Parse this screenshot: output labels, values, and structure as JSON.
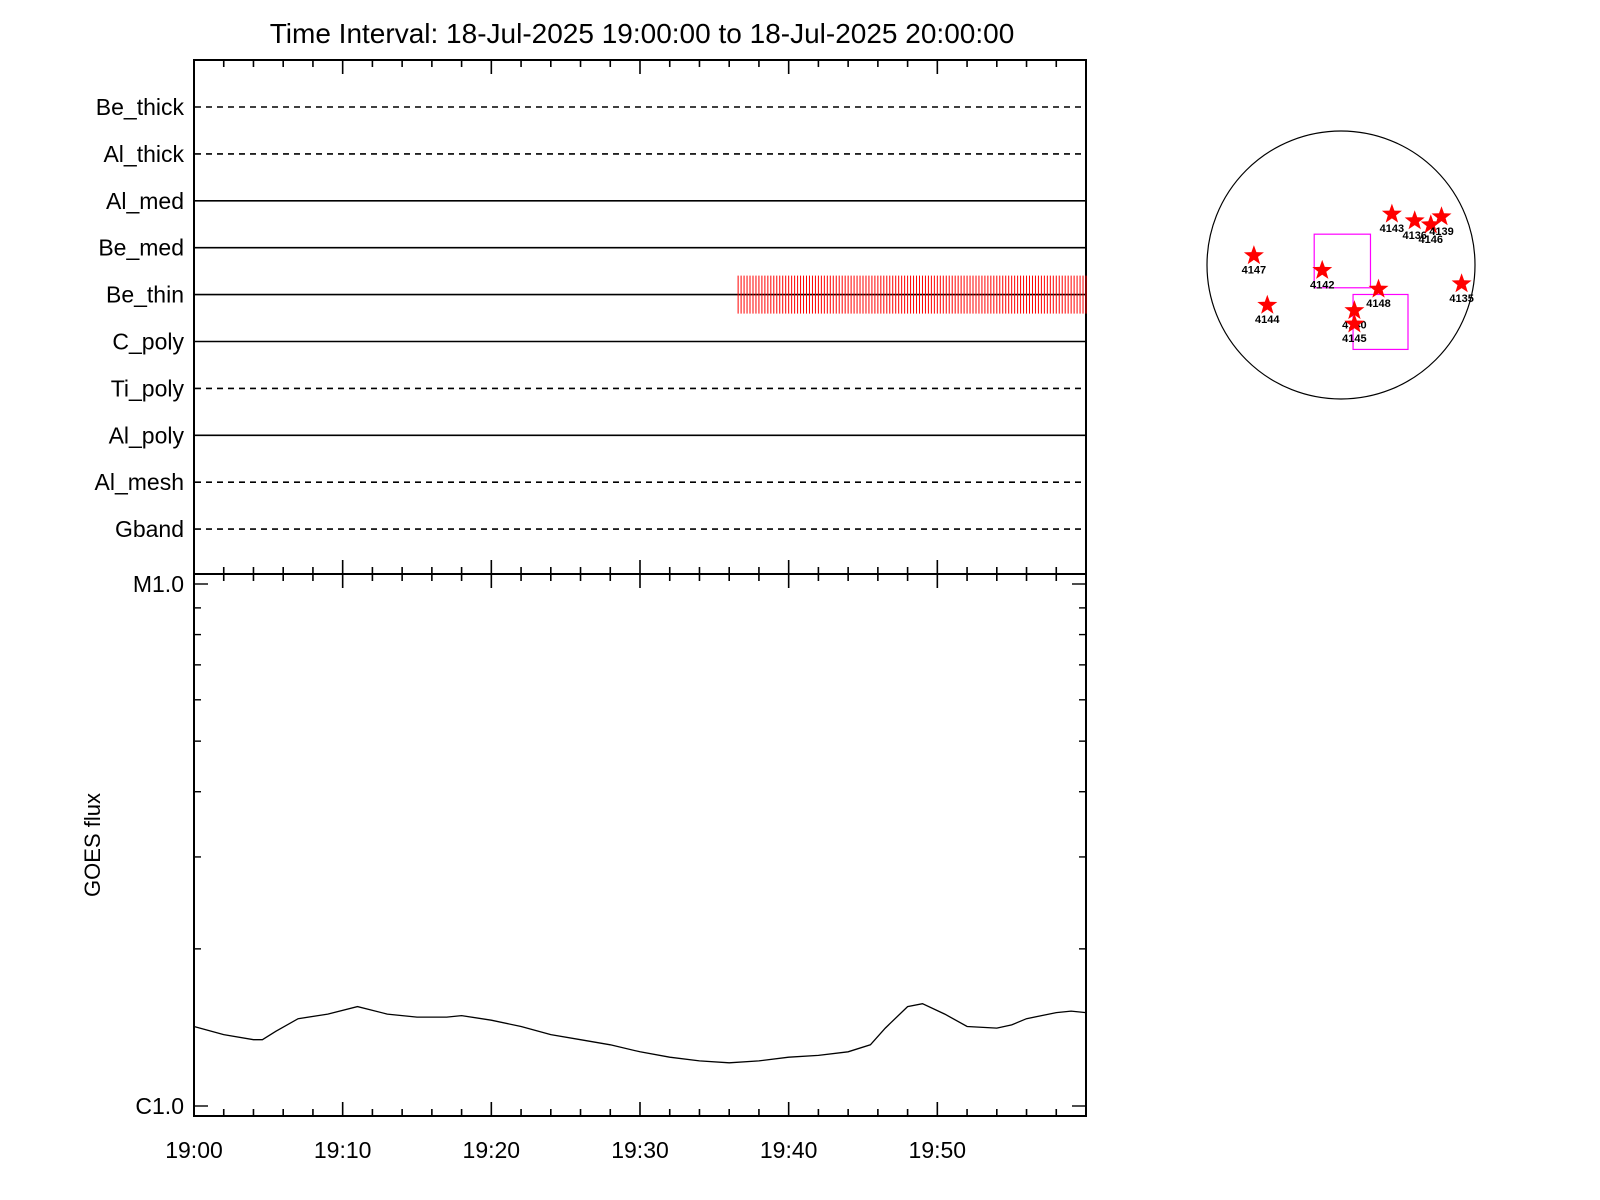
{
  "title": "Time Interval: 18-Jul-2025 19:00:00 to 18-Jul-2025 20:00:00",
  "colors": {
    "obs_marks": "#ff0000",
    "ar_star": "#ff0000",
    "fov_box": "#ff00ff",
    "axis": "#000000"
  },
  "chart_data": [
    {
      "type": "timeline",
      "x_unit": "minutes after 19:00",
      "xlim": [
        0,
        60
      ],
      "rows": [
        {
          "label": "Be_thick",
          "style": "dashed"
        },
        {
          "label": "Al_thick",
          "style": "dashed"
        },
        {
          "label": "Al_med",
          "style": "solid"
        },
        {
          "label": "Be_med",
          "style": "solid"
        },
        {
          "label": "Be_thin",
          "style": "solid",
          "observations": [
            [
              36.6,
              60
            ]
          ]
        },
        {
          "label": "C_poly",
          "style": "solid"
        },
        {
          "label": "Ti_poly",
          "style": "dashed"
        },
        {
          "label": "Al_poly",
          "style": "solid"
        },
        {
          "label": "Al_mesh",
          "style": "dashed"
        },
        {
          "label": "Gband",
          "style": "dashed"
        }
      ]
    },
    {
      "type": "line",
      "ylabel": "GOES flux",
      "y_scale": "log",
      "yticks": [
        "M1.0",
        "C1.0"
      ],
      "ylim": [
        1e-06,
        1e-05
      ],
      "xticks": [
        "19:00",
        "19:10",
        "19:20",
        "19:30",
        "19:40",
        "19:50"
      ],
      "x_minutes": [
        0,
        2,
        4,
        4.6,
        5.5,
        7,
        9,
        11,
        13,
        15,
        17,
        18,
        20,
        22,
        24,
        26,
        28,
        30,
        32,
        34,
        36,
        38,
        40,
        42,
        44,
        45.5,
        46.5,
        48,
        49,
        50.5,
        52,
        54,
        55,
        56,
        58,
        59,
        60
      ],
      "y_flux": [
        1.42e-06,
        1.37e-06,
        1.34e-06,
        1.34e-06,
        1.39e-06,
        1.47e-06,
        1.5e-06,
        1.55e-06,
        1.5e-06,
        1.48e-06,
        1.48e-06,
        1.49e-06,
        1.46e-06,
        1.42e-06,
        1.37e-06,
        1.34e-06,
        1.31e-06,
        1.27e-06,
        1.24e-06,
        1.22e-06,
        1.21e-06,
        1.22e-06,
        1.24e-06,
        1.25e-06,
        1.27e-06,
        1.31e-06,
        1.41e-06,
        1.55e-06,
        1.57e-06,
        1.5e-06,
        1.42e-06,
        1.41e-06,
        1.43e-06,
        1.47e-06,
        1.51e-06,
        1.52e-06,
        1.51e-06
      ]
    },
    {
      "type": "scatter",
      "description_role": "solar-disk-map",
      "x_unit": "fraction of disk radius (west positive)",
      "y_unit": "fraction of disk radius (north positive)",
      "regions": [
        {
          "label": "4147",
          "x": -0.65,
          "y": 0.07
        },
        {
          "label": "4142",
          "x": -0.14,
          "y": -0.04
        },
        {
          "label": "4143",
          "x": 0.38,
          "y": 0.38
        },
        {
          "label": "4136",
          "x": 0.55,
          "y": 0.33
        },
        {
          "label": "4146",
          "x": 0.67,
          "y": 0.3
        },
        {
          "label": "4139",
          "x": 0.75,
          "y": 0.36
        },
        {
          "label": "4148",
          "x": 0.28,
          "y": -0.18
        },
        {
          "label": "4135",
          "x": 0.9,
          "y": -0.14
        },
        {
          "label": "4144",
          "x": -0.55,
          "y": -0.3
        },
        {
          "label": "4140",
          "x": 0.1,
          "y": -0.34
        },
        {
          "label": "4145",
          "x": 0.1,
          "y": -0.44
        }
      ],
      "fov_boxes": [
        {
          "x0": -0.2,
          "x1": 0.22,
          "y0": -0.17,
          "y1": 0.23
        },
        {
          "x0": 0.09,
          "x1": 0.5,
          "y0": -0.63,
          "y1": -0.22
        }
      ]
    }
  ]
}
